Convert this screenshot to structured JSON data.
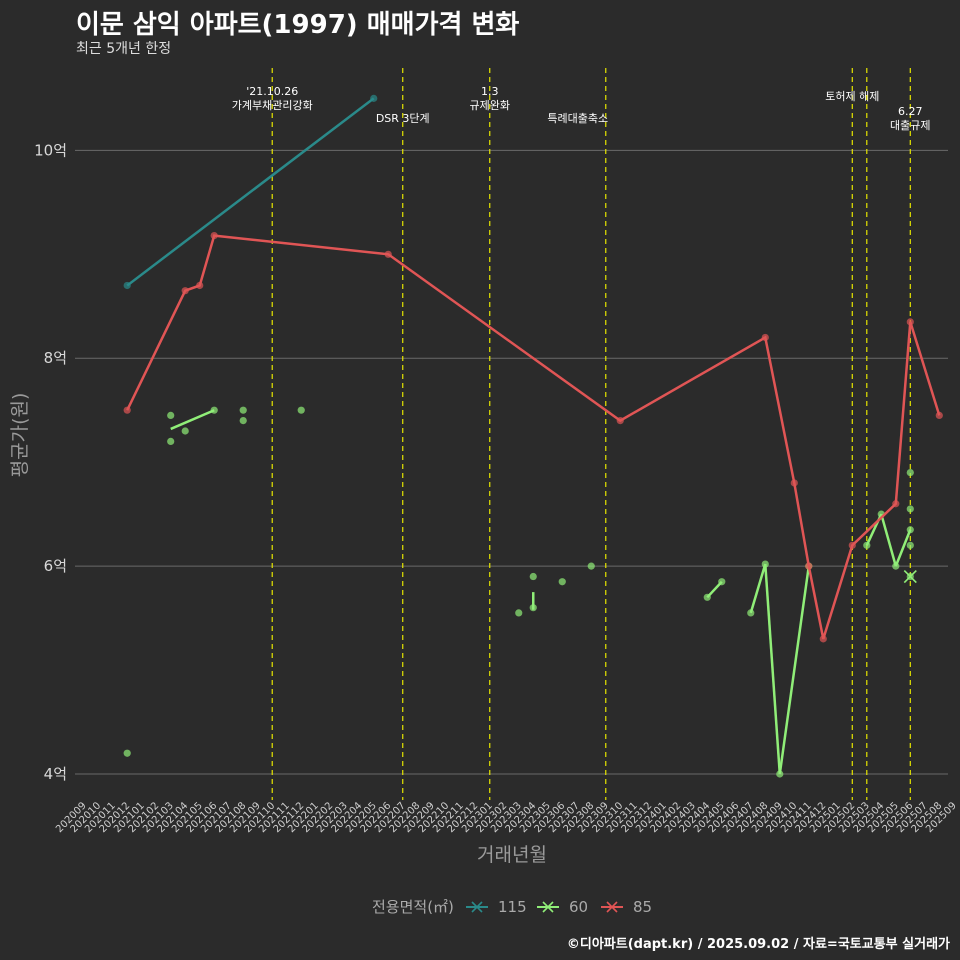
{
  "chart_data": {
    "type": "line",
    "title": "이문 삼익 아파트(1997) 매매가격 변화",
    "subtitle": "최근 5개년 한정",
    "xlabel": "거래년월",
    "ylabel": "평균가(원)",
    "ylim": [
      3.75,
      10.85
    ],
    "yticks": [
      {
        "v": 4,
        "label": "4억"
      },
      {
        "v": 6,
        "label": "6억"
      },
      {
        "v": 8,
        "label": "8억"
      },
      {
        "v": 10,
        "label": "10억"
      }
    ],
    "months": [
      "202009",
      "202010",
      "202011",
      "202012",
      "202101",
      "202102",
      "202103",
      "202104",
      "202105",
      "202106",
      "202107",
      "202108",
      "202109",
      "202110",
      "202111",
      "202112",
      "202201",
      "202202",
      "202203",
      "202204",
      "202205",
      "202206",
      "202207",
      "202208",
      "202209",
      "202210",
      "202211",
      "202212",
      "202301",
      "202302",
      "202303",
      "202304",
      "202305",
      "202306",
      "202307",
      "202308",
      "202309",
      "202310",
      "202311",
      "202312",
      "202401",
      "202402",
      "202403",
      "202404",
      "202405",
      "202406",
      "202407",
      "202408",
      "202409",
      "202410",
      "202411",
      "202412",
      "202501",
      "202502",
      "202503",
      "202504",
      "202505",
      "202506",
      "202507",
      "202508",
      "202509"
    ],
    "events": [
      {
        "month": "202110",
        "label": "'21.10.26\n가계부채관리강화",
        "level": 0
      },
      {
        "month": "202207",
        "label": "DSR 3단계",
        "level": 2
      },
      {
        "month": "202301",
        "label": "1.3\n규제완화",
        "level": 0
      },
      {
        "month": "202309",
        "label": "특례대출축소",
        "level": 2
      },
      {
        "month": "202502",
        "label": "토허제 해제",
        "level": 1
      },
      {
        "month": "202503",
        "label": "",
        "level": 1
      },
      {
        "month": "202506",
        "label": "6.27\n대출규제",
        "level": 3
      }
    ],
    "series": [
      {
        "name": "115",
        "color": "#2a8a8a",
        "points": [
          [
            "202012",
            8.7
          ],
          [
            "202205",
            10.5
          ]
        ],
        "segments": [
          [
            "202012",
            "202205"
          ]
        ]
      },
      {
        "name": "60",
        "color": "#90ee78",
        "points": [
          [
            "202012",
            4.2
          ],
          [
            "202103",
            7.2
          ],
          [
            "202103",
            7.45
          ],
          [
            "202104",
            7.3
          ],
          [
            "202106",
            7.5
          ],
          [
            "202108",
            7.4
          ],
          [
            "202108",
            7.5
          ],
          [
            "202112",
            7.5
          ],
          [
            "202303",
            5.55
          ],
          [
            "202304",
            5.6
          ],
          [
            "202304",
            5.9
          ],
          [
            "202306",
            5.85
          ],
          [
            "202308",
            6.0
          ],
          [
            "202404",
            5.7
          ],
          [
            "202405",
            5.85
          ],
          [
            "202407",
            5.55
          ],
          [
            "202408",
            6.02
          ],
          [
            "202409",
            4.0
          ],
          [
            "202411",
            6.0
          ],
          [
            "202503",
            6.2
          ],
          [
            "202504",
            6.5
          ],
          [
            "202505",
            6.0
          ],
          [
            "202506",
            6.2
          ],
          [
            "202506",
            6.35
          ],
          [
            "202506",
            6.55
          ],
          [
            "202506",
            6.9
          ],
          [
            "202506",
            5.9
          ]
        ],
        "segments": [
          [
            "202103",
            7.32,
            "202106",
            7.5
          ],
          [
            "202304",
            5.58,
            "202304",
            5.75
          ],
          [
            "202404",
            5.7,
            "202405",
            5.85
          ],
          [
            "202407",
            5.55,
            "202408",
            6.02
          ],
          [
            "202408",
            6.02,
            "202409",
            4.0
          ],
          [
            "202409",
            4.0,
            "202411",
            6.0
          ],
          [
            "202503",
            6.2,
            "202504",
            6.5
          ],
          [
            "202504",
            6.5,
            "202505",
            6.0
          ],
          [
            "202505",
            6.0,
            "202506",
            6.35
          ]
        ]
      },
      {
        "name": "85",
        "color": "#e05555",
        "points": [
          [
            "202012",
            7.5
          ],
          [
            "202104",
            8.65
          ],
          [
            "202105",
            8.7
          ],
          [
            "202106",
            9.18
          ],
          [
            "202206",
            9.0
          ],
          [
            "202310",
            7.4
          ],
          [
            "202408",
            8.2
          ],
          [
            "202410",
            6.8
          ],
          [
            "202411",
            6.0
          ],
          [
            "202412",
            5.3
          ],
          [
            "202502",
            6.2
          ],
          [
            "202505",
            6.6
          ],
          [
            "202506",
            8.35
          ],
          [
            "202508",
            7.45
          ]
        ],
        "segments": "all"
      }
    ],
    "legend_title": "전용면적(㎡)",
    "legend_position": "bottom"
  },
  "caption": "©디아파트(dapt.kr) / 2025.09.02 / 자료=국토교통부 실거래가"
}
